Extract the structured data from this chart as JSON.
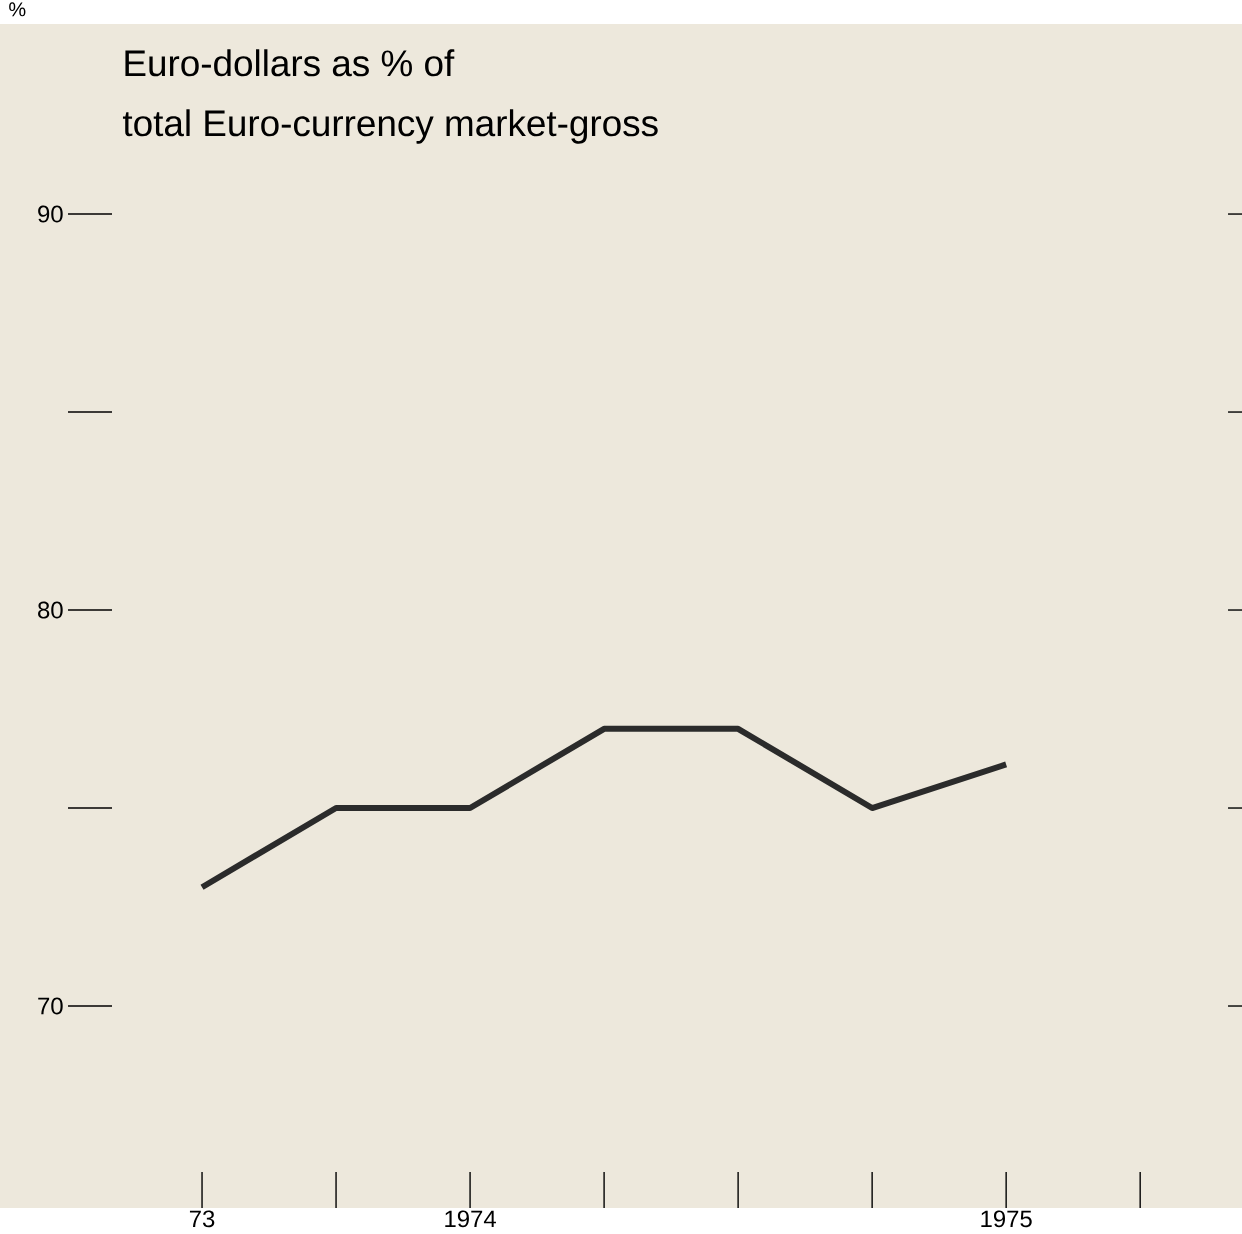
{
  "chart_data": {
    "type": "line",
    "title": "Euro-dollars as % of",
    "subtitle": "total Euro-currency market-gross",
    "ylabel": "%",
    "categories": [
      "73",
      null,
      "1974",
      null,
      null,
      null,
      "1975",
      null
    ],
    "values": [
      73,
      75,
      75,
      77,
      77,
      75,
      76.1,
      null
    ],
    "color": "#2b2b2b",
    "ylim": [
      64.9,
      94.8
    ],
    "yticks": [
      70,
      {
        "value": 75,
        "label": null
      },
      80,
      {
        "value": 85,
        "label": null
      },
      90
    ],
    "marker": "none",
    "line_style": "solid"
  }
}
